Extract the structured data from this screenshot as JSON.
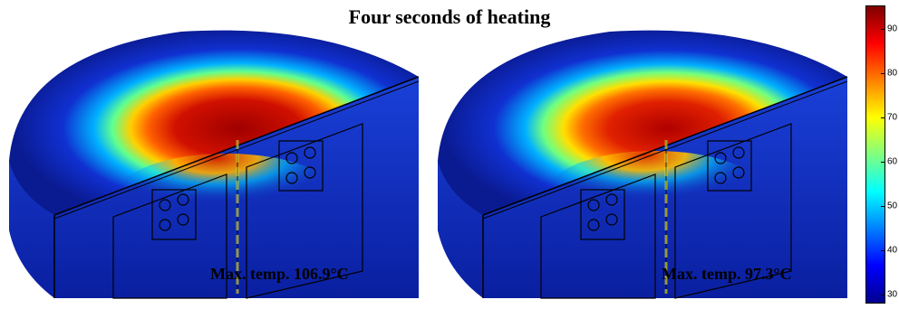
{
  "title": "Four seconds of heating",
  "panels": [
    {
      "label": "Max. temp. 106.9°C",
      "max_temp_c": 106.9
    },
    {
      "label": "Max. temp. 97.3°C",
      "max_temp_c": 97.3
    }
  ],
  "colorbar": {
    "ticks": [
      "90",
      "80",
      "70",
      "60",
      "50",
      "40",
      "30"
    ],
    "colors": [
      "#7f0000",
      "#ff0000",
      "#ff8000",
      "#ffff00",
      "#80ff80",
      "#00ffff",
      "#0080ff",
      "#0000ff",
      "#00008f"
    ]
  }
}
